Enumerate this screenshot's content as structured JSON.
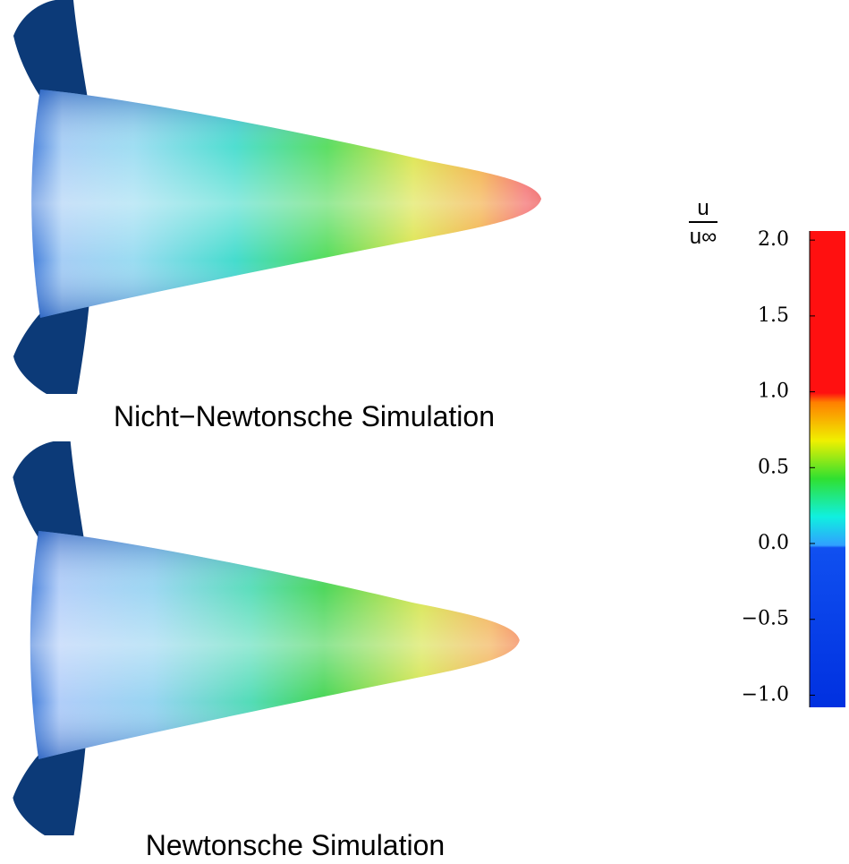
{
  "figures": [
    {
      "caption": "Nicht−Newtonsche Simulation"
    },
    {
      "caption": "Newtonsche Simulation"
    }
  ],
  "colorbar": {
    "label_numerator": "u",
    "label_denominator": "u∞",
    "range": [
      -1.08,
      2.06
    ],
    "ticks": [
      {
        "value": 2,
        "label": "2.0"
      },
      {
        "value": 1.5,
        "label": "1.5"
      },
      {
        "value": 1,
        "label": "1.0"
      },
      {
        "value": 0.5,
        "label": "0.5"
      },
      {
        "value": 0,
        "label": "0.0"
      },
      {
        "value": -0.5,
        "label": "−0.5"
      },
      {
        "value": -1,
        "label": "−1.0"
      }
    ]
  }
}
